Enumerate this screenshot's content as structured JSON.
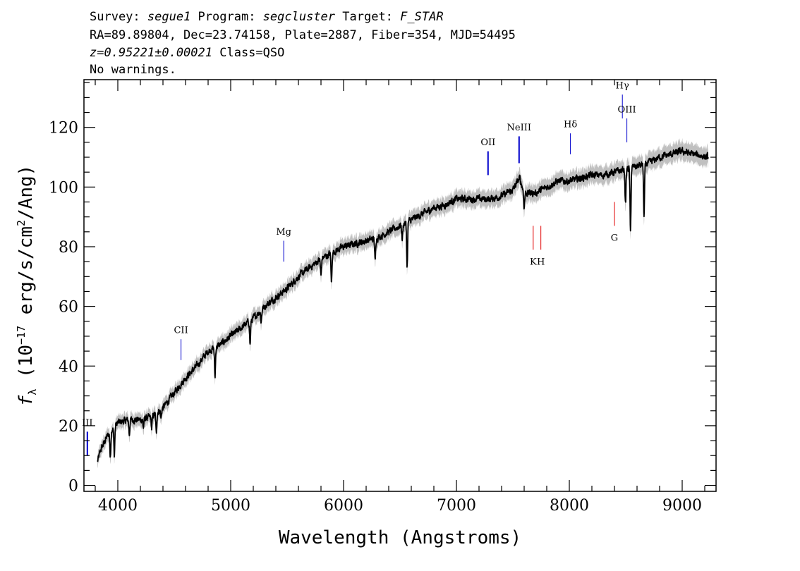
{
  "header": {
    "line1": [
      {
        "t": "Survey: ",
        "i": false
      },
      {
        "t": "segue1",
        "i": true
      },
      {
        "t": " Program: ",
        "i": false
      },
      {
        "t": "segcluster",
        "i": true
      },
      {
        "t": " Target: ",
        "i": false
      },
      {
        "t": "F_STAR",
        "i": true
      }
    ],
    "line2": [
      {
        "t": "RA=89.89804, Dec=23.74158, Plate=2887, Fiber=354, MJD=54495",
        "i": false
      }
    ],
    "line3": [
      {
        "t": "z=0.95221±0.00021",
        "i": true
      },
      {
        "t": " Class=QSO",
        "i": false
      }
    ],
    "line4": [
      {
        "t": "No warnings.",
        "i": false
      }
    ]
  },
  "chart_data": {
    "type": "line",
    "xlabel": "Wavelength (Angstroms)",
    "ylabel_parts": {
      "f": "f",
      "sub": "λ",
      "pre": " (10",
      "exp1": "−17",
      "mid": " erg/s/cm",
      "exp2": "2",
      "post": "/Ang)"
    },
    "xlim": [
      3700,
      9300
    ],
    "ylim": [
      -2,
      136
    ],
    "x_ticks": [
      4000,
      5000,
      6000,
      7000,
      8000,
      9000
    ],
    "x_minor_step": 200,
    "y_ticks": [
      0,
      20,
      40,
      60,
      80,
      100,
      120
    ],
    "y_minor_step": 5,
    "grid": false,
    "colors": {
      "spectrum": "#000000",
      "error_band": "#c0c0c0",
      "emission": "#0000cc",
      "absorption": "#e00000"
    },
    "spectrum_anchors": [
      [
        3820,
        8
      ],
      [
        3850,
        12
      ],
      [
        3900,
        16
      ],
      [
        3950,
        19
      ],
      [
        4000,
        21
      ],
      [
        4100,
        22
      ],
      [
        4200,
        22
      ],
      [
        4300,
        23
      ],
      [
        4400,
        26
      ],
      [
        4500,
        31
      ],
      [
        4600,
        36
      ],
      [
        4700,
        40
      ],
      [
        4800,
        45
      ],
      [
        4900,
        47
      ],
      [
        5000,
        50
      ],
      [
        5100,
        53
      ],
      [
        5200,
        56
      ],
      [
        5300,
        60
      ],
      [
        5400,
        63
      ],
      [
        5500,
        66
      ],
      [
        5600,
        70
      ],
      [
        5700,
        73
      ],
      [
        5800,
        76
      ],
      [
        5900,
        78
      ],
      [
        6000,
        80
      ],
      [
        6100,
        81
      ],
      [
        6200,
        82
      ],
      [
        6300,
        83
      ],
      [
        6400,
        85
      ],
      [
        6500,
        87
      ],
      [
        6600,
        89
      ],
      [
        6700,
        91
      ],
      [
        6800,
        93
      ],
      [
        6900,
        94
      ],
      [
        7000,
        96
      ],
      [
        7100,
        96
      ],
      [
        7200,
        96
      ],
      [
        7300,
        96
      ],
      [
        7400,
        97
      ],
      [
        7500,
        99
      ],
      [
        7560,
        103
      ],
      [
        7600,
        98
      ],
      [
        7700,
        98
      ],
      [
        7800,
        100
      ],
      [
        7900,
        102
      ],
      [
        8000,
        102
      ],
      [
        8100,
        103
      ],
      [
        8200,
        104
      ],
      [
        8300,
        104
      ],
      [
        8400,
        105
      ],
      [
        8500,
        106
      ],
      [
        8600,
        107
      ],
      [
        8700,
        108
      ],
      [
        8800,
        110
      ],
      [
        8900,
        111
      ],
      [
        9000,
        112
      ],
      [
        9100,
        111
      ],
      [
        9230,
        110
      ]
    ],
    "absorption_features": [
      {
        "x": 3934,
        "depth": 9
      },
      {
        "x": 3969,
        "depth": 10
      },
      {
        "x": 4102,
        "depth": 5
      },
      {
        "x": 4227,
        "depth": 3
      },
      {
        "x": 4300,
        "depth": 4
      },
      {
        "x": 4341,
        "depth": 7
      },
      {
        "x": 4383,
        "depth": 3
      },
      {
        "x": 4861,
        "depth": 10
      },
      {
        "x": 5172,
        "depth": 8
      },
      {
        "x": 5270,
        "depth": 4
      },
      {
        "x": 5800,
        "depth": 6
      },
      {
        "x": 5893,
        "depth": 10
      },
      {
        "x": 6280,
        "depth": 8
      },
      {
        "x": 6520,
        "depth": 5
      },
      {
        "x": 6563,
        "depth": 15
      },
      {
        "x": 7600,
        "depth": 5
      },
      {
        "x": 8498,
        "depth": 12
      },
      {
        "x": 8542,
        "depth": 22
      },
      {
        "x": 8662,
        "depth": 18
      }
    ],
    "emission_lines": [
      {
        "label": "III",
        "x": 3730,
        "y0": 10,
        "y1": 18,
        "label_y": 20,
        "color": "#0000cc",
        "w": 2
      },
      {
        "label": "CII",
        "x": 4560,
        "y0": 42,
        "y1": 49,
        "label_y": 51,
        "color": "#0000cc",
        "w": 1
      },
      {
        "label": "Mg",
        "x": 5470,
        "y0": 75,
        "y1": 82,
        "label_y": 84,
        "color": "#0000cc",
        "w": 1
      },
      {
        "label": "OII",
        "x": 7280,
        "y0": 104,
        "y1": 112,
        "label_y": 114,
        "color": "#0000cc",
        "w": 2
      },
      {
        "label": "NeIII",
        "x": 7555,
        "y0": 108,
        "y1": 117,
        "label_y": 119,
        "color": "#0000cc",
        "w": 2
      },
      {
        "label": "Hδ",
        "x": 8010,
        "y0": 111,
        "y1": 118,
        "label_y": 120,
        "color": "#0000cc",
        "w": 1
      },
      {
        "label": "Hγ",
        "x": 8470,
        "y0": 123,
        "y1": 131,
        "label_y": 133,
        "color": "#0000cc",
        "w": 1
      },
      {
        "label": "OIII",
        "x": 8510,
        "y0": 115,
        "y1": 123,
        "label_y": 125,
        "color": "#0000cc",
        "w": 1
      }
    ],
    "absorption_lines": [
      {
        "label": "K",
        "x": 7680,
        "y0": 79,
        "y1": 87,
        "label_y": 74,
        "color": "#e00000",
        "w": 1
      },
      {
        "label": "H",
        "x": 7748,
        "y0": 79,
        "y1": 87,
        "label_y": 74,
        "color": "#e00000",
        "w": 1
      },
      {
        "label": "G",
        "x": 8400,
        "y0": 87,
        "y1": 95,
        "label_y": 82,
        "color": "#e00000",
        "w": 1
      }
    ]
  }
}
